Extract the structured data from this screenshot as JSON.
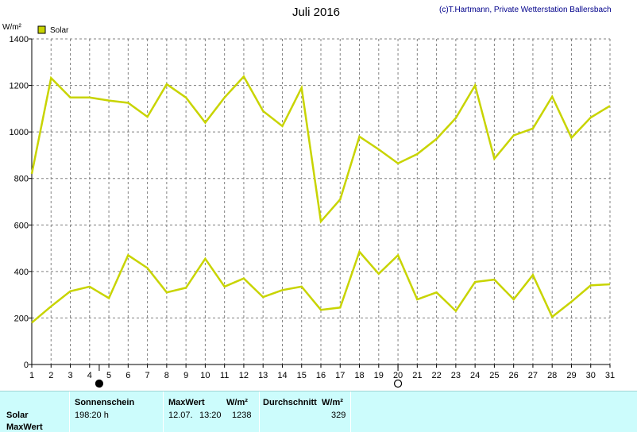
{
  "chart_data": {
    "type": "line",
    "title": "Juli 2016",
    "credit": "(c)T.Hartmann, Private Wetterstation Ballersbach",
    "ylabel": "W/m²",
    "ylim": [
      0,
      1400
    ],
    "yticks": [
      0,
      200,
      400,
      600,
      800,
      1000,
      1200,
      1400
    ],
    "x": [
      1,
      2,
      3,
      4,
      5,
      6,
      7,
      8,
      9,
      10,
      11,
      12,
      13,
      14,
      15,
      16,
      17,
      18,
      19,
      20,
      21,
      22,
      23,
      24,
      25,
      26,
      27,
      28,
      29,
      30,
      31
    ],
    "grid": true,
    "legend": {
      "position": "top-left",
      "label": "Solar"
    },
    "series": [
      {
        "name": "Solar",
        "role": "max",
        "color": "#c8d400",
        "values": [
          820,
          1232,
          1148,
          1148,
          1135,
          1125,
          1065,
          1205,
          1148,
          1040,
          1148,
          1238,
          1090,
          1025,
          1190,
          615,
          710,
          980,
          925,
          865,
          905,
          970,
          1060,
          1200,
          885,
          985,
          1015,
          1152,
          975,
          1062,
          1112
        ]
      },
      {
        "name": "Solar",
        "role": "avg",
        "color": "#c8d400",
        "values": [
          180,
          250,
          315,
          335,
          285,
          470,
          415,
          310,
          330,
          455,
          335,
          370,
          290,
          320,
          335,
          235,
          245,
          485,
          390,
          470,
          280,
          310,
          230,
          355,
          365,
          280,
          385,
          205,
          270,
          340,
          345
        ]
      }
    ],
    "moon_phases": [
      {
        "day": 4.5,
        "phase": "new"
      },
      {
        "day": 20,
        "phase": "full"
      }
    ]
  },
  "stats": {
    "row_labels": [
      "Solar",
      "MaxWert"
    ],
    "col_sonnenschein": "Sonnenschein",
    "sonnenschein_value": "198:20 h",
    "col_maxwert": "MaxWert",
    "col_unit": "W/m²",
    "max_date": "12.07.",
    "max_time": "13:20",
    "max_value": "1238",
    "col_durchschnitt": "Durchschnitt",
    "avg_value": "329"
  }
}
